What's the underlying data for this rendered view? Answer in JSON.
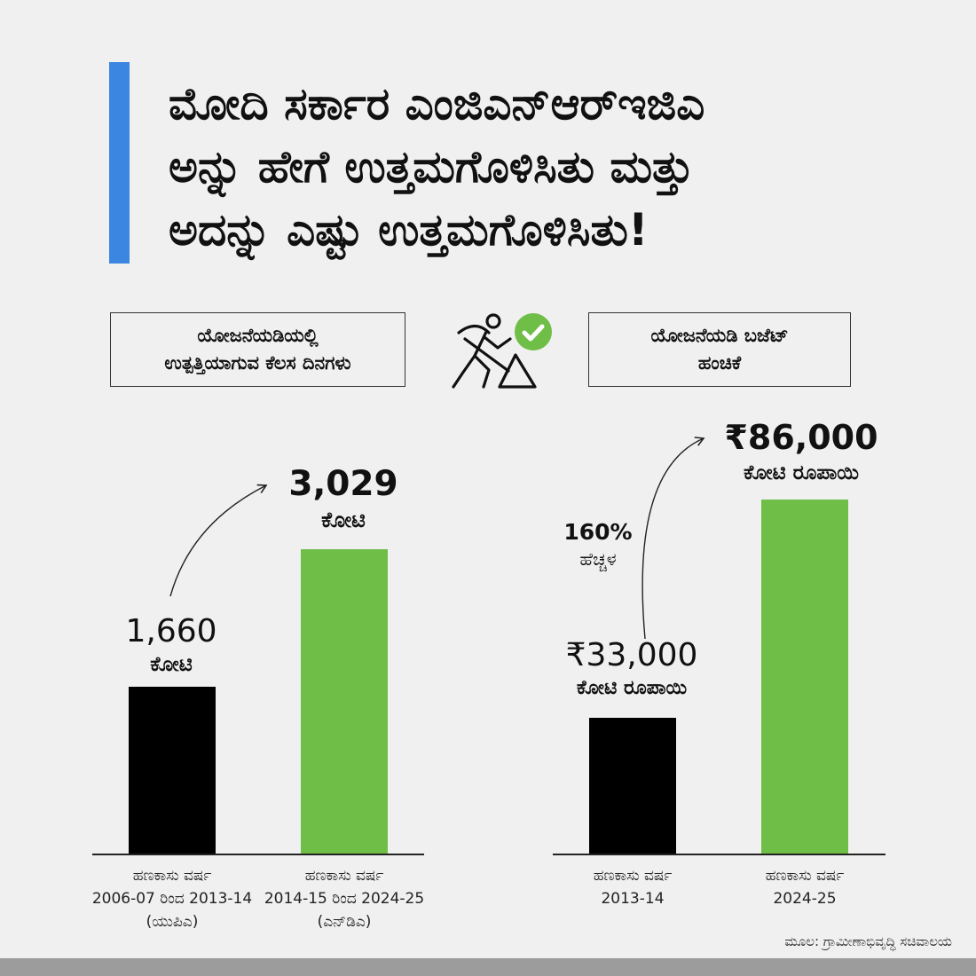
{
  "title_lines": [
    "ಮೋದಿ ಸರ್ಕಾರ ಎಂಜಿಎನ್‌ಆರ್‌ಇಜಿಎ",
    "ಅನ್ನು ಹೇಗೆ ಉತ್ತಮಗೊಳಿಸಿತು ಮತ್ತು",
    "ಅದನ್ನು ಎಷ್ಟು ಉತ್ತಮಗೊಳಿಸಿತು!"
  ],
  "left_label": [
    "ಯೋಜನೆಯಡಿಯಲ್ಲಿ",
    "ಉತ್ಪತ್ತಿಯಾಗುವ ಕೆಲಸ ದಿನಗಳು"
  ],
  "right_label": [
    "ಯೋಜನೆಯಡಿ ಬಜೆಟ್",
    "ಹಂಚಿಕೆ"
  ],
  "icons": {
    "center": "worker-shovel-icon",
    "badge": "check-circle-icon"
  },
  "colors": {
    "accent": "#3a86e0",
    "upa": "#000000",
    "nda": "#6fbe47"
  },
  "source": "ಮೂಲ: ಗ್ರಾಮೀಣಾಭಿವೃದ್ಧಿ ಸಚಿವಾಲಯ",
  "chart_data": [
    {
      "type": "bar",
      "categories": [
        [
          "ಹಣಕಾಸು ವರ್ಷ",
          "2006-07 ರಿಂದ  2013-14",
          "(ಯುಪಿಎ)"
        ],
        [
          "ಹಣಕಾಸು ವರ್ಷ",
          "2014-15 ರಿಂದ 2024-25",
          "(ಎನ್‌ಡಿಎ)"
        ]
      ],
      "values": [
        1660,
        3029
      ],
      "value_labels": [
        "1,660",
        "3,029"
      ],
      "unit": "ಕೋಟಿ",
      "colors": [
        "#000000",
        "#6fbe47"
      ]
    },
    {
      "type": "bar",
      "categories": [
        [
          "ಹಣಕಾಸು ವರ್ಷ",
          "2013-14"
        ],
        [
          "ಹಣಕಾಸು ವರ್ಷ",
          "2024-25"
        ]
      ],
      "values": [
        33000,
        86000
      ],
      "value_labels": [
        "₹33,000",
        "₹86,000"
      ],
      "unit": "ಕೋಟಿ ರೂಪಾಯಿ",
      "growth_pct": "160%",
      "growth_label": "ಹೆಚ್ಚಳ",
      "colors": [
        "#000000",
        "#6fbe47"
      ]
    }
  ]
}
